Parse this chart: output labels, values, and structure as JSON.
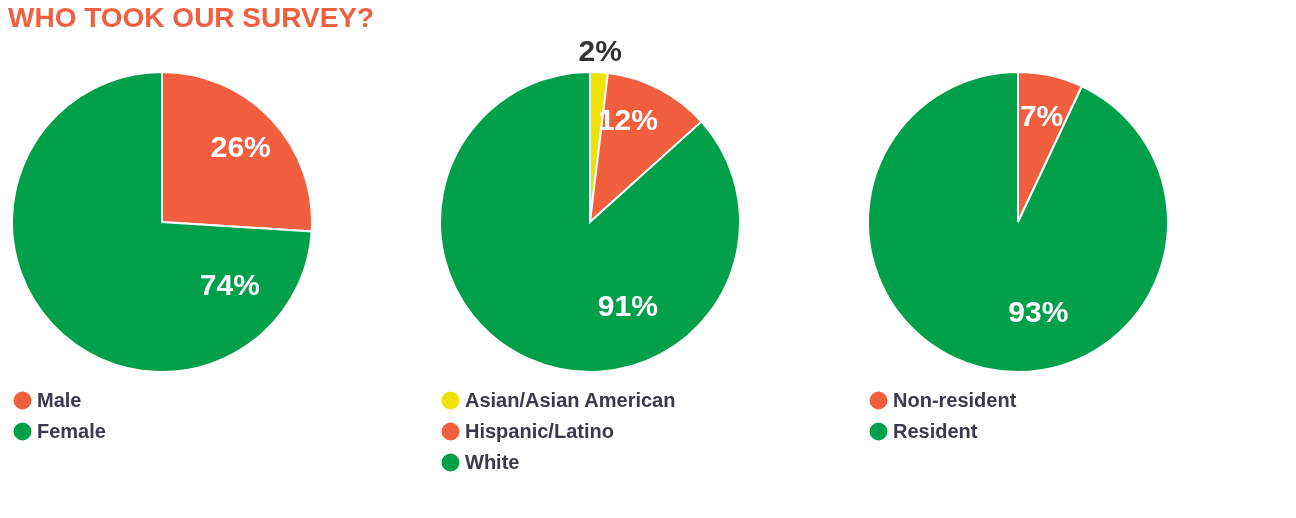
{
  "chart_data": [
    {
      "type": "pie",
      "title": "WHO TOOK OUR SURVEY?",
      "categories": [
        "Male",
        "Female"
      ],
      "values": [
        26,
        74
      ],
      "value_labels": [
        "26%",
        "74%"
      ],
      "colors": [
        "#f15f3f",
        "#00a04b"
      ],
      "legend": "bottom"
    },
    {
      "type": "pie",
      "categories": [
        "Asian/Asian American",
        "Hispanic/Latino",
        "White"
      ],
      "values": [
        2,
        12,
        91
      ],
      "value_labels": [
        "2%",
        "12%",
        "91%"
      ],
      "colors": [
        "#f0e100",
        "#f15f3f",
        "#00a04b"
      ],
      "legend": "bottom"
    },
    {
      "type": "pie",
      "categories": [
        "Non-resident",
        "Resident"
      ],
      "values": [
        7,
        93
      ],
      "value_labels": [
        "7%",
        "93%"
      ],
      "colors": [
        "#f15f3f",
        "#00a04b"
      ],
      "legend": "bottom"
    }
  ]
}
